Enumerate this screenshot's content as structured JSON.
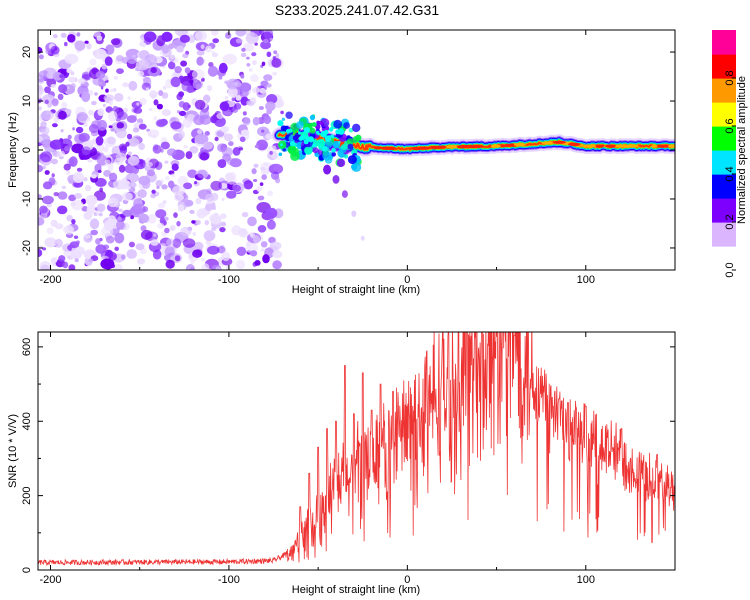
{
  "title": "S233.2025.241.07.42.G31",
  "chart_data": [
    {
      "type": "heatmap",
      "name": "spectrogram",
      "xlabel": "Height of straight line (km)",
      "ylabel": "Frequency (Hz)",
      "xlim": [
        -207,
        150
      ],
      "ylim": [
        -24.5,
        24.5
      ],
      "x_ticks": [
        -200,
        -100,
        0,
        100
      ],
      "x_tick_labels": [
        "-200",
        "-100",
        "0",
        "100"
      ],
      "y_ticks": [
        20,
        10,
        0,
        -10,
        -20
      ],
      "y_tick_labels": [
        "20",
        "10",
        "0",
        "-10",
        "-20"
      ],
      "noise_region_km": [
        -207,
        -72
      ],
      "signal_onset_km": -72,
      "signal_frequency_hz": [
        [
          -72,
          3.5
        ],
        [
          -60,
          3.0
        ],
        [
          -50,
          2.5
        ],
        [
          -40,
          1.5
        ],
        [
          -30,
          0.8
        ],
        [
          -20,
          0.5
        ],
        [
          0,
          0.2
        ],
        [
          20,
          0.6
        ],
        [
          50,
          0.8
        ],
        [
          85,
          1.6
        ],
        [
          100,
          0.8
        ],
        [
          150,
          0.8
        ]
      ],
      "side_trail_hz": [
        [
          -45,
          -4
        ],
        [
          -40,
          -6
        ],
        [
          -35,
          -9
        ],
        [
          -30,
          -13
        ],
        [
          -25,
          -18
        ]
      ]
    },
    {
      "type": "colorbar",
      "name": "colorbar",
      "label": "Normalized spectral amplitude",
      "ylim": [
        0,
        1
      ],
      "ticks": [
        0.0,
        0.2,
        0.4,
        0.6,
        0.8
      ],
      "tick_labels": [
        "0.0",
        "0.2",
        "0.4",
        "0.6",
        "0.8"
      ],
      "colors": [
        "#ffffff",
        "#dcb5ff",
        "#7d00ff",
        "#0000ff",
        "#00e5ff",
        "#00ff00",
        "#ffff00",
        "#ff9900",
        "#ff0000",
        "#ff0099"
      ]
    },
    {
      "type": "line",
      "name": "snr",
      "xlabel": "Height of straight line (km)",
      "ylabel": "SNR (10 * V/V)",
      "xlim": [
        -207,
        150
      ],
      "ylim": [
        0,
        640
      ],
      "x_ticks": [
        -200,
        -100,
        0,
        100
      ],
      "x_tick_labels": [
        "-200",
        "-100",
        "0",
        "100"
      ],
      "y_ticks": [
        0,
        200,
        400,
        600
      ],
      "y_tick_labels": [
        "0",
        "200",
        "400",
        "600"
      ],
      "color": "#ee3333",
      "envelope": [
        [
          -207,
          20
        ],
        [
          -100,
          22
        ],
        [
          -75,
          25
        ],
        [
          -65,
          50
        ],
        [
          -60,
          90
        ],
        [
          -50,
          150
        ],
        [
          -40,
          220
        ],
        [
          -30,
          260
        ],
        [
          -20,
          300
        ],
        [
          -10,
          340
        ],
        [
          0,
          380
        ],
        [
          10,
          430
        ],
        [
          20,
          480
        ],
        [
          30,
          520
        ],
        [
          40,
          560
        ],
        [
          50,
          585
        ],
        [
          60,
          590
        ],
        [
          65,
          580
        ],
        [
          70,
          520
        ],
        [
          80,
          430
        ],
        [
          90,
          380
        ],
        [
          100,
          345
        ],
        [
          110,
          330
        ],
        [
          120,
          300
        ],
        [
          130,
          265
        ],
        [
          140,
          240
        ],
        [
          150,
          220
        ]
      ],
      "spikes": [
        [
          -60,
          170
        ],
        [
          -55,
          260
        ],
        [
          -50,
          330
        ],
        [
          -45,
          380
        ],
        [
          -40,
          400
        ],
        [
          -35,
          550
        ],
        [
          -30,
          420
        ],
        [
          -25,
          530
        ],
        [
          -20,
          430
        ],
        [
          -15,
          500
        ],
        [
          -8,
          480
        ],
        [
          60,
          630
        ],
        [
          85,
          460
        ],
        [
          90,
          450
        ],
        [
          100,
          440
        ],
        [
          120,
          380
        ],
        [
          140,
          310
        ]
      ]
    }
  ]
}
